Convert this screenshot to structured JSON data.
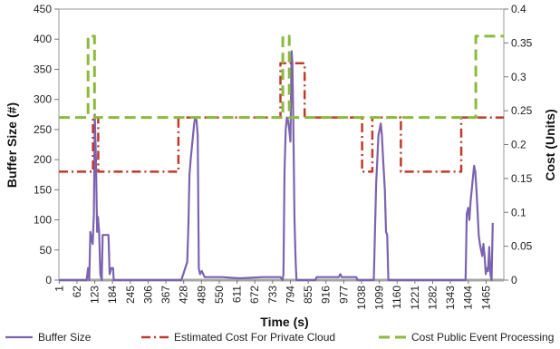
{
  "chart_data": {
    "type": "line",
    "xlabel": "Time (s)",
    "ylabel_left": "Buffer Size (#)",
    "ylabel_right": "Cost (Units)",
    "x_ticks": [
      "1",
      "62",
      "123",
      "184",
      "245",
      "306",
      "367",
      "428",
      "489",
      "550",
      "611",
      "672",
      "733",
      "794",
      "855",
      "916",
      "977",
      "1038",
      "1099",
      "1160",
      "1221",
      "1282",
      "1343",
      "1404",
      "1465"
    ],
    "x_range": [
      0,
      1526
    ],
    "y_left_range": [
      0,
      450
    ],
    "y_left_ticks": [
      "0",
      "50",
      "100",
      "150",
      "200",
      "250",
      "300",
      "350",
      "400",
      "450"
    ],
    "y_right_range": [
      0,
      0.4
    ],
    "y_right_ticks": [
      "0",
      "0.05",
      "0.1",
      "0.15",
      "0.2",
      "0.25",
      "0.3",
      "0.35",
      "0.4"
    ],
    "grid": false,
    "legend_position": "bottom",
    "colors": {
      "buffer": "#7b63b0",
      "private": "#c0392b",
      "public": "#8dba3c"
    },
    "series": [
      {
        "name": "Buffer Size",
        "axis": "left",
        "style": "solid",
        "points": [
          [
            0,
            0
          ],
          [
            95,
            0
          ],
          [
            100,
            20
          ],
          [
            104,
            0
          ],
          [
            108,
            80
          ],
          [
            112,
            70
          ],
          [
            116,
            60
          ],
          [
            120,
            110
          ],
          [
            123,
            275
          ],
          [
            127,
            200
          ],
          [
            131,
            80
          ],
          [
            134,
            105
          ],
          [
            138,
            80
          ],
          [
            142,
            10
          ],
          [
            147,
            0
          ],
          [
            150,
            75
          ],
          [
            170,
            75
          ],
          [
            174,
            10
          ],
          [
            180,
            20
          ],
          [
            186,
            20
          ],
          [
            188,
            0
          ],
          [
            420,
            0
          ],
          [
            440,
            30
          ],
          [
            444,
            90
          ],
          [
            448,
            175
          ],
          [
            452,
            200
          ],
          [
            456,
            220
          ],
          [
            460,
            240
          ],
          [
            464,
            260
          ],
          [
            468,
            270
          ],
          [
            472,
            265
          ],
          [
            476,
            240
          ],
          [
            480,
            20
          ],
          [
            484,
            10
          ],
          [
            490,
            15
          ],
          [
            500,
            5
          ],
          [
            560,
            5
          ],
          [
            620,
            3
          ],
          [
            700,
            5
          ],
          [
            760,
            5
          ],
          [
            767,
            0
          ],
          [
            770,
            10
          ],
          [
            774,
            180
          ],
          [
            778,
            250
          ],
          [
            782,
            270
          ],
          [
            786,
            265
          ],
          [
            790,
            250
          ],
          [
            794,
            230
          ],
          [
            798,
            380
          ],
          [
            801,
            360
          ],
          [
            804,
            260
          ],
          [
            808,
            100
          ],
          [
            812,
            30
          ],
          [
            815,
            0
          ],
          [
            880,
            0
          ],
          [
            884,
            5
          ],
          [
            920,
            5
          ],
          [
            960,
            5
          ],
          [
            965,
            10
          ],
          [
            970,
            5
          ],
          [
            1020,
            5
          ],
          [
            1024,
            0
          ],
          [
            1080,
            0
          ],
          [
            1084,
            80
          ],
          [
            1088,
            160
          ],
          [
            1092,
            200
          ],
          [
            1096,
            240
          ],
          [
            1100,
            250
          ],
          [
            1104,
            260
          ],
          [
            1108,
            240
          ],
          [
            1112,
            200
          ],
          [
            1118,
            150
          ],
          [
            1122,
            80
          ],
          [
            1126,
            75
          ],
          [
            1130,
            0
          ],
          [
            1395,
            0
          ],
          [
            1399,
            110
          ],
          [
            1404,
            120
          ],
          [
            1408,
            100
          ],
          [
            1412,
            130
          ],
          [
            1416,
            150
          ],
          [
            1420,
            170
          ],
          [
            1424,
            190
          ],
          [
            1428,
            180
          ],
          [
            1432,
            150
          ],
          [
            1436,
            115
          ],
          [
            1440,
            75
          ],
          [
            1444,
            60
          ],
          [
            1448,
            50
          ],
          [
            1452,
            40
          ],
          [
            1456,
            60
          ],
          [
            1460,
            40
          ],
          [
            1464,
            10
          ],
          [
            1468,
            20
          ],
          [
            1472,
            15
          ],
          [
            1476,
            55
          ],
          [
            1480,
            10
          ],
          [
            1484,
            0
          ],
          [
            1488,
            95
          ]
        ]
      },
      {
        "name": "Estimated Cost For Private Cloud",
        "axis": "right",
        "style": "dash-dot",
        "points": [
          [
            0,
            0.16
          ],
          [
            117,
            0.16
          ],
          [
            117,
            0.24
          ],
          [
            135,
            0.24
          ],
          [
            135,
            0.16
          ],
          [
            410,
            0.16
          ],
          [
            410,
            0.24
          ],
          [
            760,
            0.24
          ],
          [
            760,
            0.32
          ],
          [
            843,
            0.32
          ],
          [
            843,
            0.24
          ],
          [
            1040,
            0.24
          ],
          [
            1040,
            0.16
          ],
          [
            1075,
            0.16
          ],
          [
            1075,
            0.24
          ],
          [
            1173,
            0.24
          ],
          [
            1173,
            0.16
          ],
          [
            1380,
            0.16
          ],
          [
            1380,
            0.24
          ],
          [
            1526,
            0.24
          ]
        ]
      },
      {
        "name": "Cost Public Event Processing",
        "axis": "right",
        "style": "dashed",
        "points": [
          [
            0,
            0.24
          ],
          [
            100,
            0.24
          ],
          [
            100,
            0.36
          ],
          [
            122,
            0.36
          ],
          [
            122,
            0.24
          ],
          [
            768,
            0.24
          ],
          [
            768,
            0.36
          ],
          [
            790,
            0.36
          ],
          [
            790,
            0.24
          ],
          [
            1430,
            0.24
          ],
          [
            1430,
            0.36
          ],
          [
            1526,
            0.36
          ]
        ]
      }
    ]
  }
}
